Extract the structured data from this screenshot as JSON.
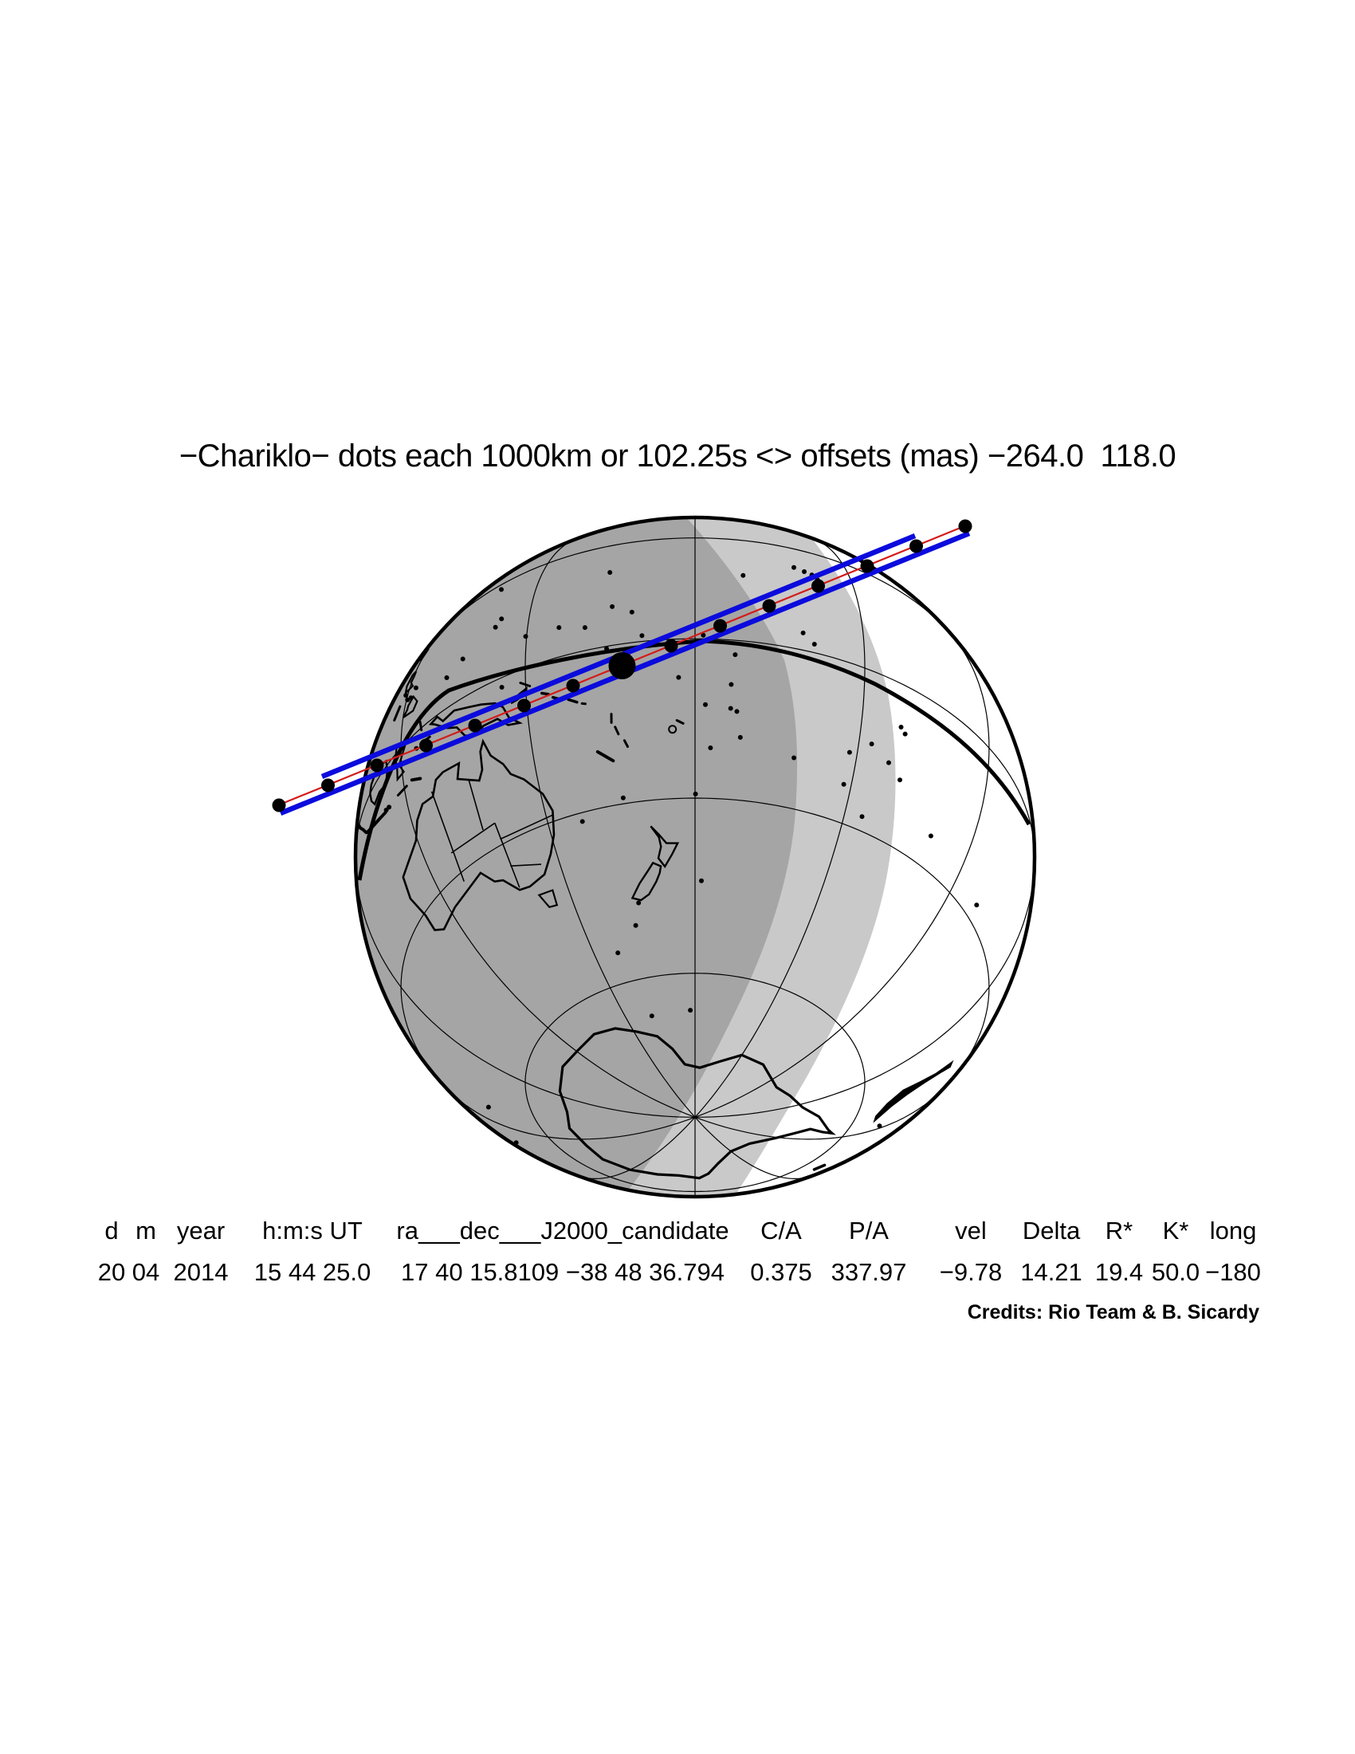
{
  "title": "−Chariklo− dots each 1000km or 102.25s <> offsets (mas) −264.0  118.0",
  "credits": "Credits: Rio Team & B. Sicardy",
  "table": {
    "columns": [
      {
        "header": "d",
        "value": "20"
      },
      {
        "header": "m",
        "value": "04"
      },
      {
        "header": "year",
        "value": "2014"
      },
      {
        "header": "h:m:s UT",
        "value": "15 44 25.0"
      },
      {
        "header": "ra___dec___J2000_candidate",
        "value": "17 40 15.8109 −38 48 36.794"
      },
      {
        "header": "C/A",
        "value": "0.375"
      },
      {
        "header": "P/A",
        "value": "337.97"
      },
      {
        "header": "vel",
        "value": "−9.78"
      },
      {
        "header": "Delta",
        "value": "14.21"
      },
      {
        "header": "R*",
        "value": "19.4"
      },
      {
        "header": "K*",
        "value": "50.0"
      },
      {
        "header": "long",
        "value": "−180"
      }
    ]
  },
  "map": {
    "body_name": "Chariklo",
    "dot_spacing_label": "dots each 1000km or 102.25s",
    "offsets_mas": [
      "−264.0",
      "118.0"
    ],
    "path_dot_count": 15,
    "big_dot_index": 7,
    "colors": {
      "path_blue": "#0b0bdd",
      "center_line_red": "#d41b1b",
      "night_shade": "#a5a5a5",
      "twilight_shade": "#c9c9c9",
      "day_shade": "#ffffff",
      "outline_black": "#000000"
    }
  }
}
